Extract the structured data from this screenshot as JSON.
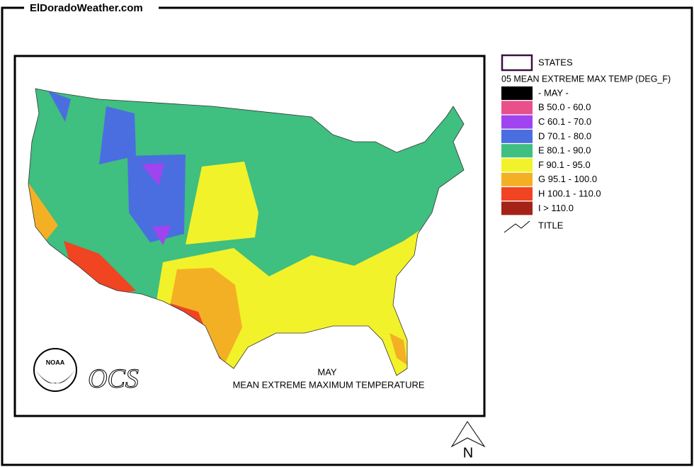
{
  "header": {
    "site": "ElDoradoWeather.com"
  },
  "legend": {
    "states_label": "STATES",
    "layer_title": "05 MEAN EXTREME MAX TEMP (DEG_F)",
    "items": [
      {
        "label": "- MAY -",
        "color": "#000000"
      },
      {
        "label": "B 50.0 - 60.0",
        "color": "#e8508c"
      },
      {
        "label": "C 60.1 - 70.0",
        "color": "#a044f0"
      },
      {
        "label": "D 70.1 - 80.0",
        "color": "#4a6ee0"
      },
      {
        "label": "E 80.1 - 90.0",
        "color": "#3fbf80"
      },
      {
        "label": "F 90.1 - 95.0",
        "color": "#f2f22a"
      },
      {
        "label": "G 95.1 - 100.0",
        "color": "#f4b024"
      },
      {
        "label": "H 100.1 - 110.0",
        "color": "#f04422"
      },
      {
        "label": "I > 110.0",
        "color": "#a42218"
      }
    ],
    "title_label": "TITLE"
  },
  "map": {
    "caption_month": "MAY",
    "caption_title": "MEAN EXTREME MAXIMUM TEMPERATURE",
    "logo_text": "NOAA",
    "logo_ocs": "OCS",
    "compass": "N"
  }
}
